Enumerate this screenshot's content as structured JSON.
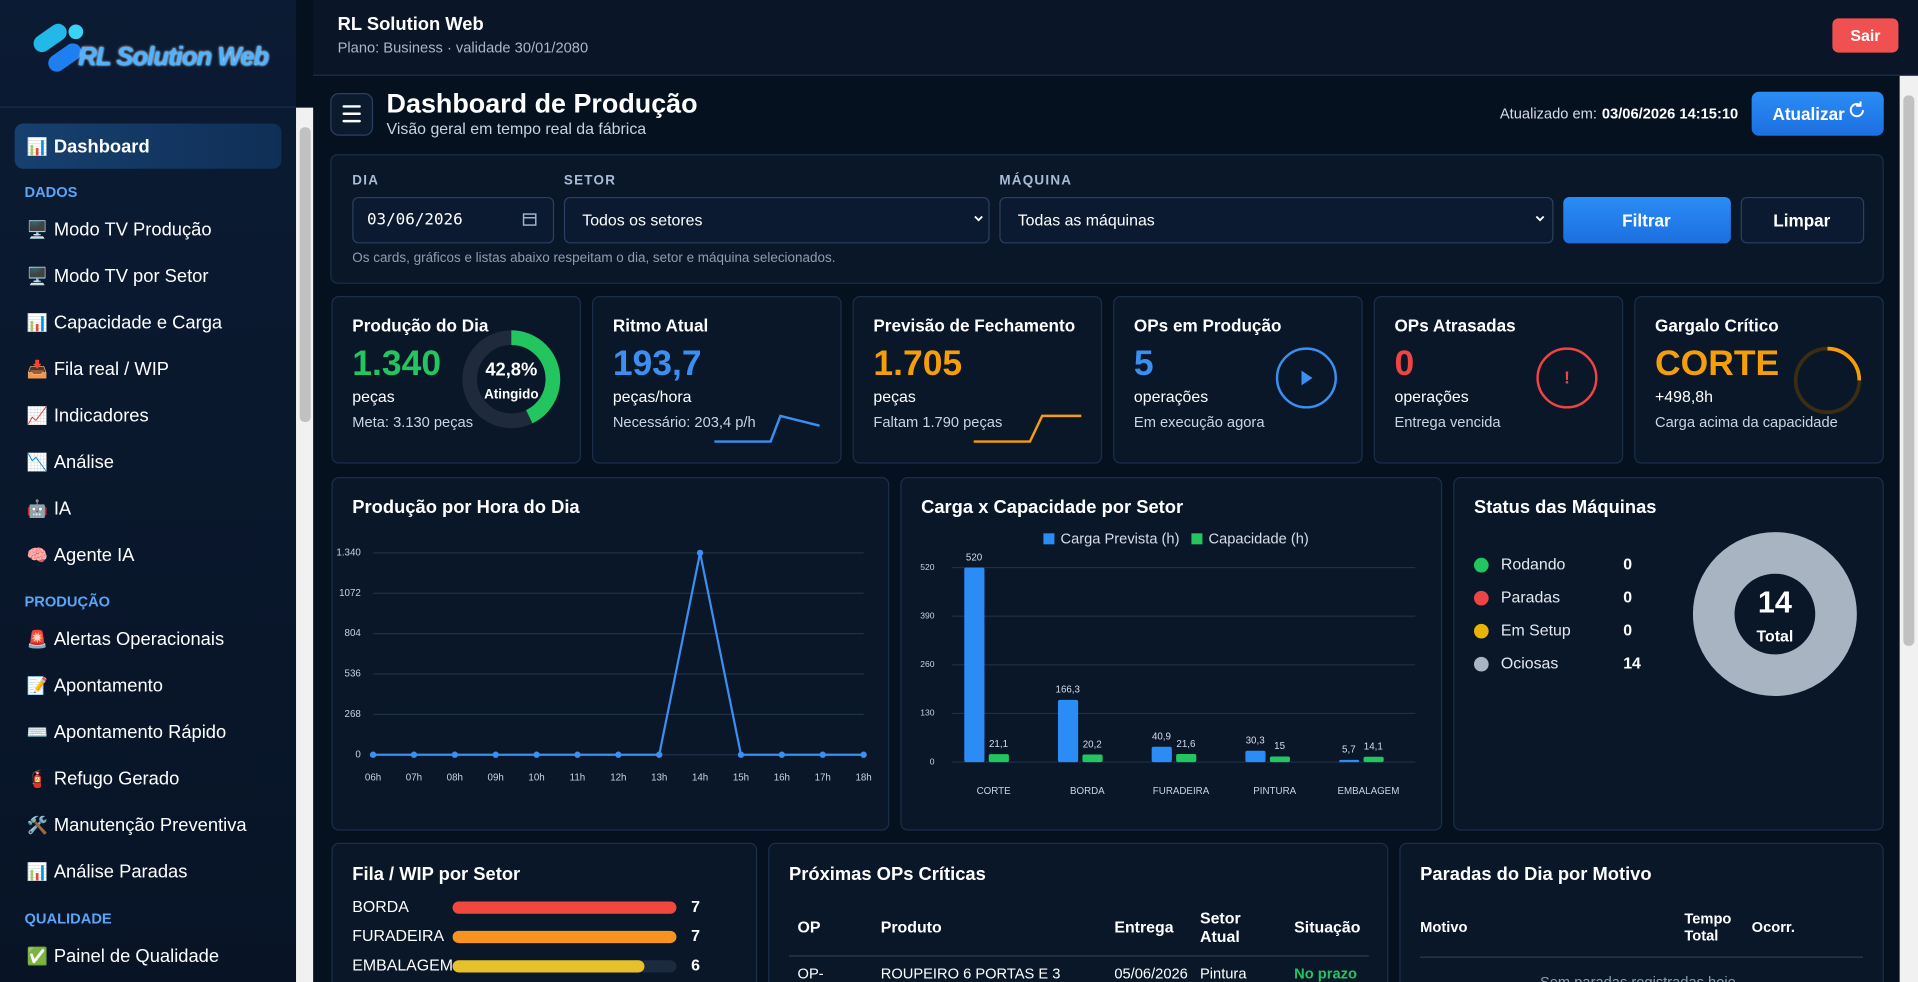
{
  "sidebar": {
    "logo": "RL Solution Web",
    "groups": [
      {
        "items": [
          {
            "icon": "📊",
            "label": "Dashboard"
          }
        ]
      },
      {
        "title": "DADOS",
        "items": [
          {
            "icon": "🖥️",
            "label": "Modo TV Produção"
          },
          {
            "icon": "🖥️",
            "label": "Modo TV por Setor"
          },
          {
            "icon": "📊",
            "label": "Capacidade e Carga"
          },
          {
            "icon": "📥",
            "label": "Fila real / WIP"
          },
          {
            "icon": "📈",
            "label": "Indicadores"
          },
          {
            "icon": "📉",
            "label": "Análise"
          },
          {
            "icon": "🤖",
            "label": "IA"
          },
          {
            "icon": "🧠",
            "label": "Agente IA"
          }
        ]
      },
      {
        "title": "PRODUÇÃO",
        "items": [
          {
            "icon": "🚨",
            "label": "Alertas Operacionais"
          },
          {
            "icon": "📝",
            "label": "Apontamento"
          },
          {
            "icon": "⌨️",
            "label": "Apontamento Rápido"
          },
          {
            "icon": "🧯",
            "label": "Refugo Gerado"
          },
          {
            "icon": "🛠️",
            "label": "Manutenção Preventiva"
          },
          {
            "icon": "📊",
            "label": "Análise Paradas"
          }
        ]
      },
      {
        "title": "QUALIDADE",
        "items": [
          {
            "icon": "✅",
            "label": "Painel de Qualidade"
          }
        ]
      }
    ]
  },
  "header": {
    "title": "RL Solution Web",
    "plan": "Plano: Business · validade 30/01/2080",
    "logout": "Sair"
  },
  "page": {
    "title": "Dashboard de Produção",
    "subtitle": "Visão geral em tempo real da fábrica",
    "updated_label": "Atualizado em:",
    "updated_value": "03/06/2026 14:15:10",
    "refresh": "Atualizar"
  },
  "filters": {
    "day_label": "DIA",
    "day_value": "03/06/2026",
    "sector_label": "SETOR",
    "sector_value": "Todos os setores",
    "machine_label": "MÁQUINA",
    "machine_value": "Todas as máquinas",
    "filter_button": "Filtrar",
    "clear_button": "Limpar",
    "note": "Os cards, gráficos e listas abaixo respeitam o dia, setor e máquina selecionados."
  },
  "kpis": [
    {
      "title": "Produção do Dia",
      "value": "1.340",
      "unit": "peças",
      "footer": "Meta: 3.130 peças",
      "color": "#22c55e",
      "percent": 42.8,
      "percent_label": "42,8%",
      "percent_caption": "Atingido"
    },
    {
      "title": "Ritmo Atual",
      "value": "193,7",
      "unit": "peças/hora",
      "footer": "Necessário: 203,4 p/h",
      "color": "#3b8ff0"
    },
    {
      "title": "Previsão de Fechamento",
      "value": "1.705",
      "unit": "peças",
      "footer": "Faltam 1.790 peças",
      "color": "#f59e0b"
    },
    {
      "title": "OPs em Produção",
      "value": "5",
      "unit": "operações",
      "footer": "Em execução agora",
      "color": "#3b8ff0"
    },
    {
      "title": "OPs Atrasadas",
      "value": "0",
      "unit": "operações",
      "footer": "Entrega vencida",
      "color": "#ef4444"
    },
    {
      "title": "Gargalo Crítico",
      "value": "CORTE",
      "unit": "+498,8h",
      "footer": "Carga acima da capacidade",
      "color": "#f59e0b"
    }
  ],
  "chart_data": [
    {
      "type": "line",
      "title": "Produção por Hora do Dia",
      "categories": [
        "06h",
        "07h",
        "08h",
        "09h",
        "10h",
        "11h",
        "12h",
        "13h",
        "14h",
        "15h",
        "16h",
        "17h",
        "18h"
      ],
      "values": [
        0,
        0,
        0,
        0,
        0,
        0,
        0,
        0,
        1340,
        0,
        0,
        0,
        0
      ],
      "color": "#3b8ff0",
      "ylim": [
        0,
        1340
      ],
      "yticks": [
        0,
        268,
        536,
        804,
        1072,
        {
          "value": 1340,
          "label": "1.340"
        }
      ],
      "grid": true
    },
    {
      "type": "bar",
      "title": "Carga x Capacidade por Setor",
      "categories": [
        "CORTE",
        "BORDA",
        "FURADEIRA",
        "PINTURA",
        "EMBALAGEM"
      ],
      "series": [
        {
          "name": "Carga Prevista (h)",
          "color": "#2b8cf5",
          "values": [
            519.9,
            166.3,
            40.9,
            30.3,
            5.7
          ],
          "value_labels": [
            "520",
            "166,3",
            "40,9",
            "30,3",
            "5,7"
          ]
        },
        {
          "name": "Capacidade (h)",
          "color": "#22c55e",
          "values": [
            21.1,
            20.2,
            21.6,
            15,
            14.1
          ],
          "value_labels": [
            "21,1",
            "20,2",
            "21,6",
            "15",
            "14,1"
          ]
        }
      ],
      "ylim": [
        0,
        520
      ],
      "yticks": [
        0,
        130,
        260,
        390,
        520
      ],
      "grid": true,
      "legend": "top"
    },
    {
      "type": "donut",
      "title": "Status das Máquinas",
      "categories": [
        "Rodando",
        "Paradas",
        "Em Setup",
        "Ociosas"
      ],
      "values": [
        0,
        0,
        0,
        14
      ],
      "colors": [
        "#22c55e",
        "#ef4444",
        "#eab308",
        "#a9b4c2"
      ],
      "total": 14,
      "center_label": "Total"
    },
    {
      "type": "hbar",
      "title": "Fila / WIP por Setor",
      "categories": [
        "BORDA",
        "FURADEIRA",
        "EMBALAGEM"
      ],
      "values": [
        7,
        7,
        6
      ],
      "colors": [
        "#f2473f",
        "#f7931e",
        "#e8c12a"
      ],
      "xlim": [
        0,
        7
      ]
    }
  ],
  "critical_ops": {
    "title": "Próximas OPs Críticas",
    "columns": [
      "OP",
      "Produto",
      "Entrega",
      "Setor Atual",
      "Situação"
    ],
    "rows": [
      [
        "OP-",
        "ROUPEIRO 6 PORTAS E 3",
        "05/06/2026",
        "Pintura",
        "No prazo"
      ]
    ]
  },
  "stops": {
    "title": "Paradas do Dia por Motivo",
    "columns": [
      "Motivo",
      "Tempo Total",
      "Ocorr."
    ],
    "empty": "Sem paradas registradas hoje"
  }
}
